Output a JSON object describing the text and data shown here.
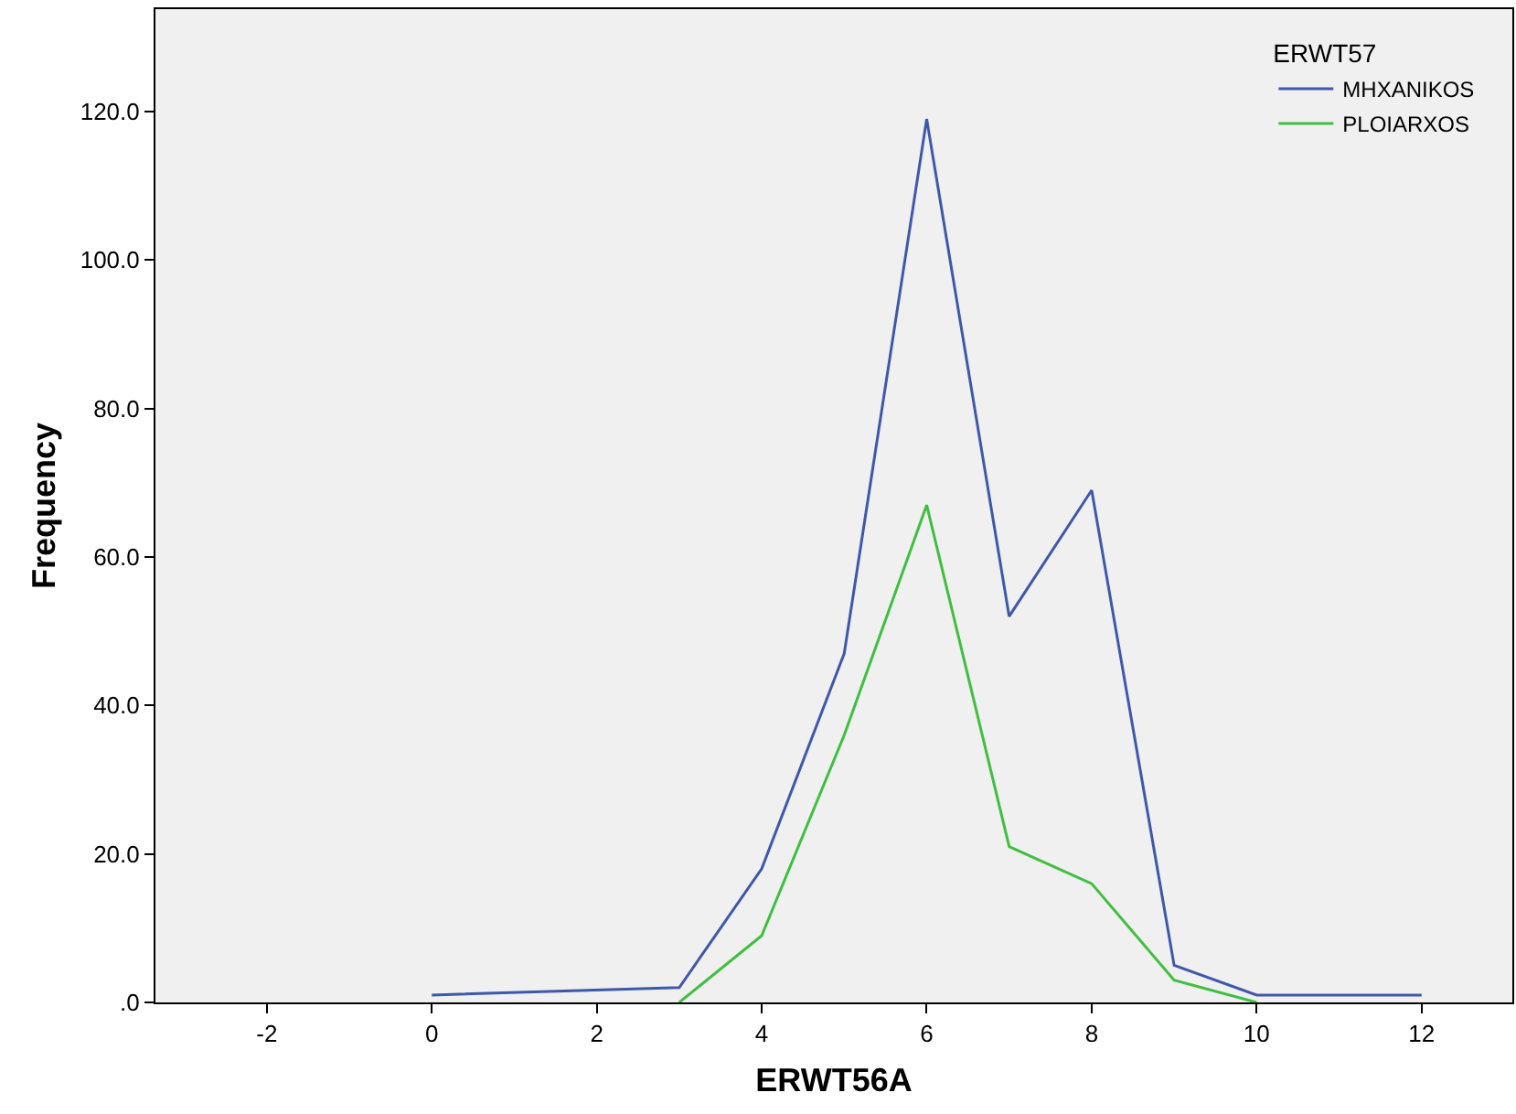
{
  "chart_data": {
    "type": "line",
    "xlabel": "ERWT56A",
    "ylabel": "Frequency",
    "legend_title": "ERWT57",
    "legend": "top right",
    "grid": false,
    "marker": "none",
    "line_style": "solid",
    "xlim": [
      -3.35,
      13.1
    ],
    "xticks": [
      -2,
      0,
      2,
      4,
      6,
      8,
      10,
      12
    ],
    "ylim": [
      0,
      133.8
    ],
    "yticks": [
      {
        "value": 0,
        "label": ".0"
      },
      {
        "value": 20,
        "label": "20.0"
      },
      {
        "value": 40,
        "label": "40.0"
      },
      {
        "value": 60,
        "label": "60.0"
      },
      {
        "value": 80,
        "label": "80.0"
      },
      {
        "value": 100,
        "label": "100.0"
      },
      {
        "value": 120,
        "label": "120.0"
      }
    ],
    "series": [
      {
        "name": "MHXANIKOS",
        "color": "#3e58ac",
        "x": [
          0,
          3,
          4,
          5,
          6,
          7,
          8,
          9,
          10,
          12
        ],
        "values": [
          1,
          2,
          18,
          47,
          119,
          52,
          69,
          5,
          1,
          1
        ]
      },
      {
        "name": "PLOIARXOS",
        "color": "#3fbf3f",
        "x": [
          3,
          4,
          5,
          6,
          7,
          8,
          9,
          10
        ],
        "values": [
          0,
          9,
          36,
          67,
          21,
          16,
          3,
          0
        ]
      }
    ]
  }
}
